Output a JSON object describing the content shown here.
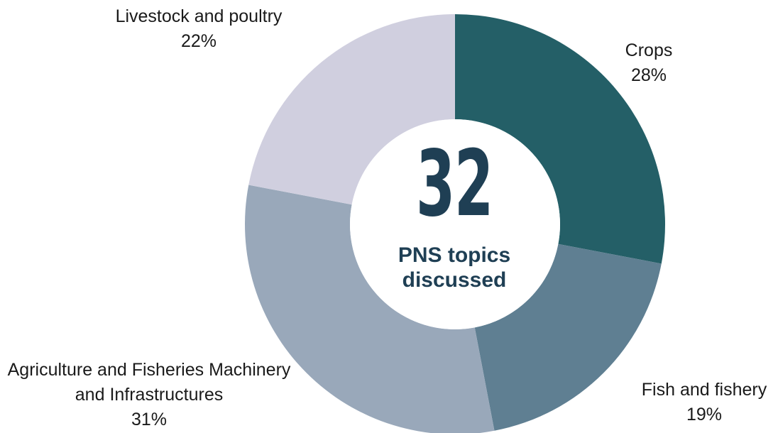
{
  "chart_data": {
    "type": "pie",
    "variant": "donut",
    "categories": [
      "Crops",
      "Fish and fishery",
      "Agriculture and Fisheries Machinery and Infrastructures",
      "Livestock and poultry"
    ],
    "values": [
      28,
      19,
      31,
      22
    ],
    "value_labels": [
      "28%",
      "19%",
      "31%",
      "22%"
    ],
    "colors": [
      "#245f67",
      "#5f7f92",
      "#99a8ba",
      "#d0cfdf"
    ],
    "center": {
      "value": "32",
      "caption": "PNS topics discussed"
    }
  }
}
